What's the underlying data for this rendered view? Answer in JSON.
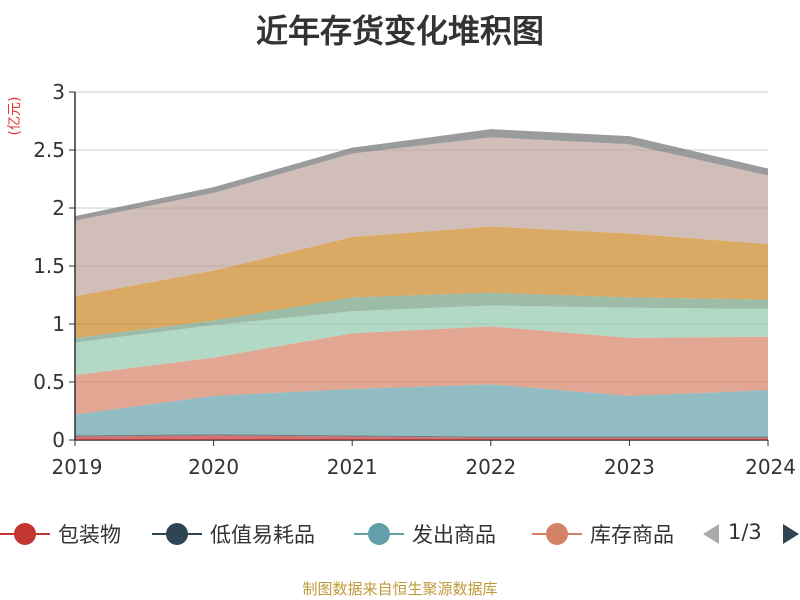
{
  "title": "近年存货变化堆积图",
  "source_note": "制图数据来自恒生聚源数据库",
  "chart_data": {
    "type": "area",
    "stacked": true,
    "title": "近年存货变化堆积图",
    "ylabel": "(亿元)",
    "xlabel": "",
    "x": [
      "2019",
      "2020",
      "2021",
      "2022",
      "2023",
      "2024"
    ],
    "ylim": [
      0,
      3
    ],
    "yticks": [
      "0",
      "0.5",
      "1",
      "1.5",
      "2",
      "2.5",
      "3"
    ],
    "grid": true,
    "series": [
      {
        "name": "包装物",
        "color": "#c23531",
        "values": [
          0.03,
          0.04,
          0.03,
          0.02,
          0.02,
          0.02
        ]
      },
      {
        "name": "低值易耗品",
        "color": "#2f4554",
        "values": [
          0.01,
          0.01,
          0.01,
          0.01,
          0.01,
          0.01
        ]
      },
      {
        "name": "发出商品",
        "color": "#61a0a8",
        "values": [
          0.18,
          0.33,
          0.4,
          0.45,
          0.35,
          0.4
        ]
      },
      {
        "name": "库存商品",
        "color": "#d48265",
        "values": [
          0.34,
          0.33,
          0.48,
          0.5,
          0.5,
          0.46
        ]
      },
      {
        "name": "",
        "color": "#91c7ae",
        "values": [
          0.28,
          0.28,
          0.19,
          0.18,
          0.26,
          0.24
        ]
      },
      {
        "name": "",
        "color": "#749f83",
        "values": [
          0.04,
          0.04,
          0.12,
          0.11,
          0.09,
          0.08
        ]
      },
      {
        "name": "",
        "color": "#ca8622",
        "values": [
          0.36,
          0.43,
          0.52,
          0.57,
          0.55,
          0.48
        ]
      },
      {
        "name": "",
        "color": "#bda29a",
        "values": [
          0.65,
          0.67,
          0.72,
          0.77,
          0.77,
          0.59
        ]
      },
      {
        "name": "",
        "color": "#6e7074",
        "values": [
          0.04,
          0.05,
          0.05,
          0.07,
          0.07,
          0.06
        ]
      }
    ]
  },
  "legend": {
    "items": [
      {
        "name": "包装物",
        "color": "#c23531"
      },
      {
        "name": "低值易耗品",
        "color": "#2f4554"
      },
      {
        "name": "发出商品",
        "color": "#61a0a8"
      },
      {
        "name": "库存商品",
        "color": "#d48265"
      }
    ],
    "page_text": "1/3"
  }
}
